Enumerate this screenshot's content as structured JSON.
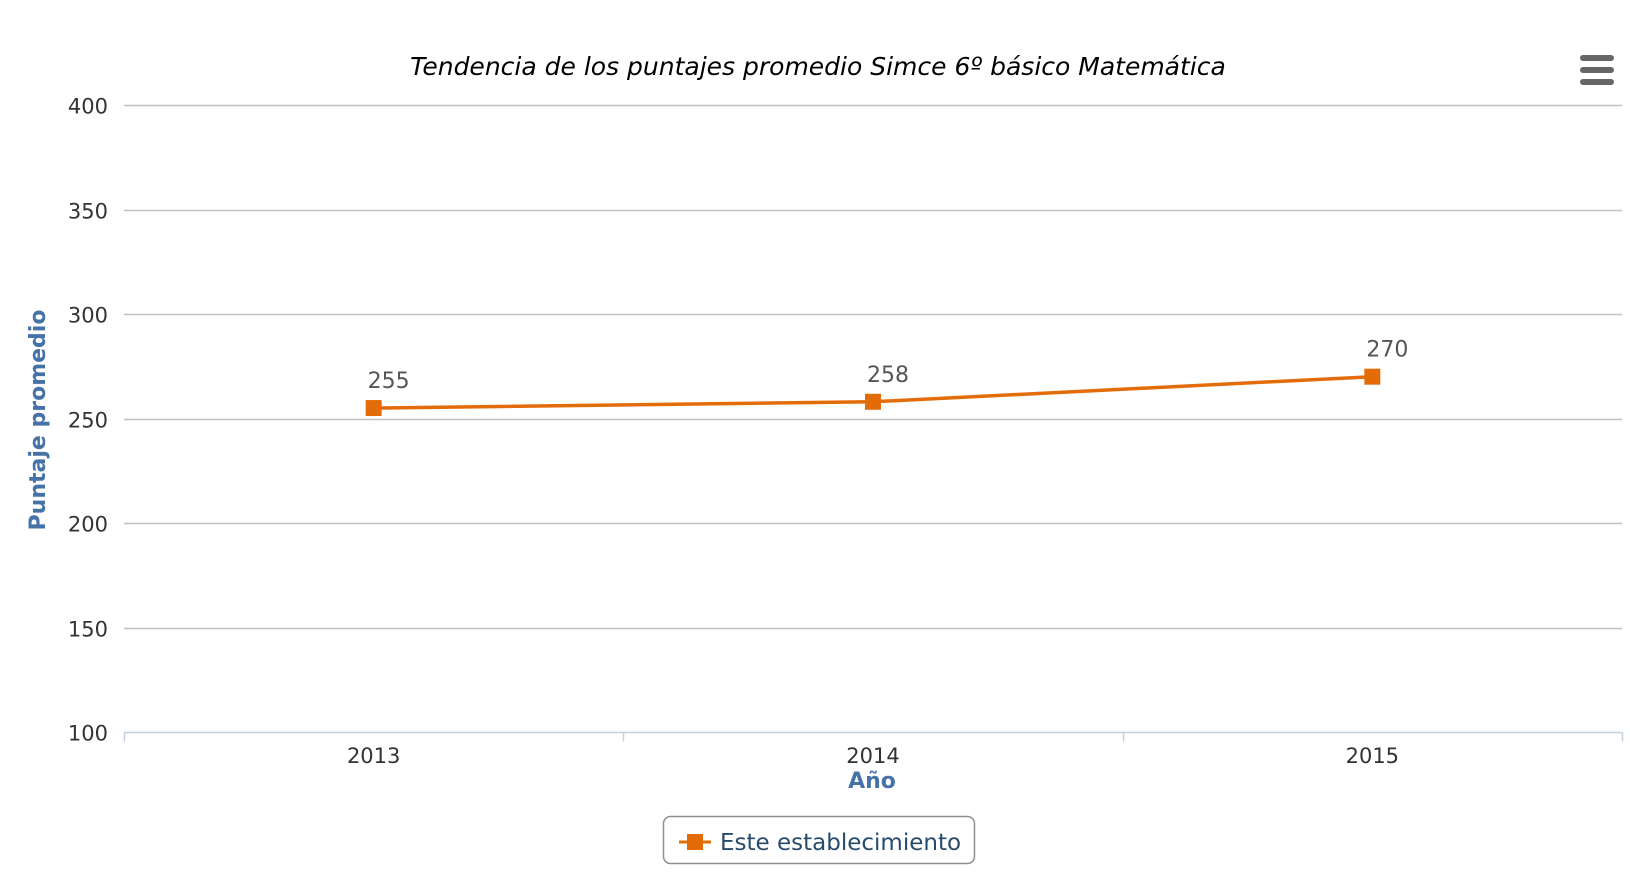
{
  "chart_data": {
    "type": "line",
    "title": "Tendencia de los puntajes promedio Simce 6º básico Matemática",
    "xlabel": "Año",
    "ylabel": "Puntaje promedio",
    "categories": [
      "2013",
      "2014",
      "2015"
    ],
    "series": [
      {
        "name": "Este establecimiento",
        "values": [
          255,
          258,
          270
        ],
        "color": "#E36C09",
        "marker": "square"
      }
    ],
    "ylim": [
      100,
      400
    ],
    "yticks": [
      100,
      150,
      200,
      250,
      300,
      350,
      400
    ],
    "grid": true,
    "legend_position": "bottom-center",
    "data_labels": true
  },
  "menu": {
    "icon": "hamburger-menu-icon"
  },
  "colors": {
    "grid": "#C0C0C0",
    "axis": "#C0D0E0",
    "axis_title": "#4572A7",
    "legend_text": "#274b6d",
    "legend_border": "#909090",
    "menu_icon": "#666666"
  }
}
